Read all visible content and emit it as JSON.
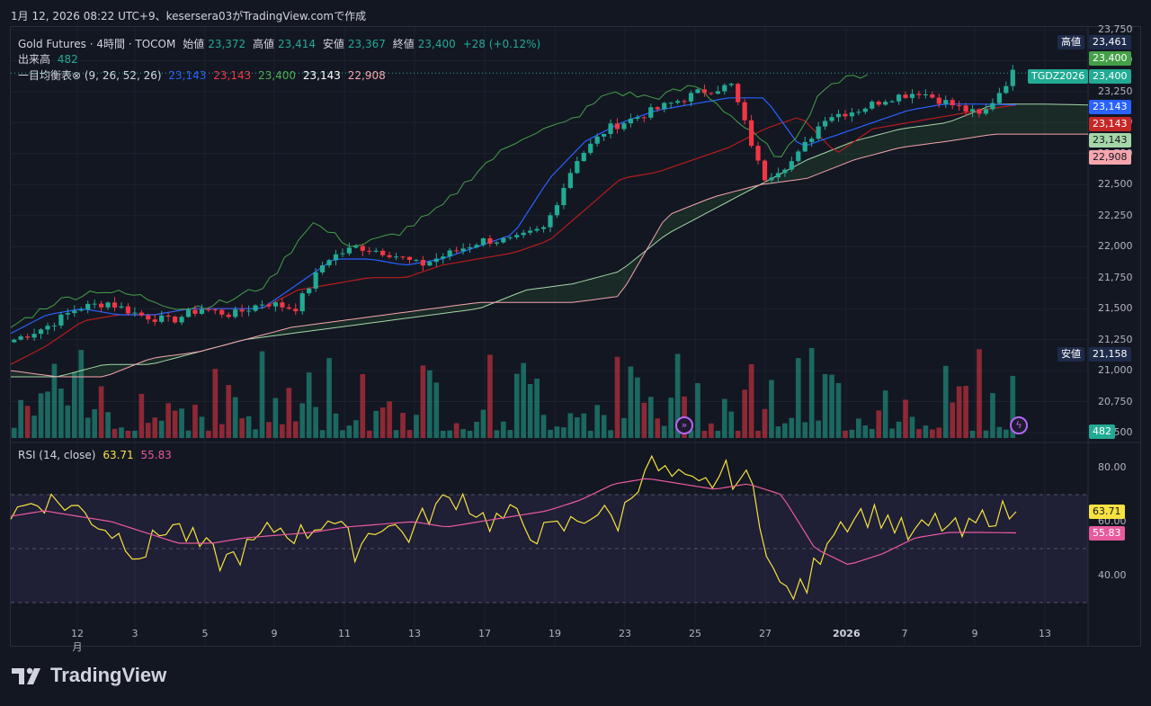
{
  "caption": "1月 12, 2026 08:22 UTC+9、kesersera03がTradingView.comで作成",
  "legend": {
    "symbol": "Gold Futures · 4時間 · TOCOM",
    "open_label": "始値",
    "open": "23,372",
    "high_label": "高値",
    "high": "23,414",
    "low_label": "安値",
    "low": "23,367",
    "close_label": "終値",
    "close": "23,400",
    "change": "+28 (+0.12%)",
    "volume_label": "出来高",
    "volume": "482",
    "ichimoku_label": "一目均衡表⊗ (9, 26, 52, 26)",
    "ichi_tenkan": "23,143",
    "ichi_kijun": "23,143",
    "ichi_chikou": "23,400",
    "ichi_spanA": "23,143",
    "ichi_spanB": "22,908",
    "rsi_label": "RSI (14, close)",
    "rsi_value": "63.71",
    "rsi_ma": "55.83"
  },
  "price_tags": {
    "high_label": "高値",
    "high_value": "23,461",
    "chikou": "23,400",
    "symbol_tag": "TGDZ2026",
    "last": "23,400",
    "tenkan": "23,143",
    "kijun": "23,143",
    "spanA": "23,143",
    "spanB": "22,908",
    "low_label": "安値",
    "low_value": "21,158",
    "volume": "482",
    "rsi": "63.71",
    "rsi_ma": "55.83"
  },
  "colors": {
    "background": "#131722",
    "up": "#22ab94",
    "down": "#f23645",
    "tenkan": "#2962ff",
    "kijun": "#b71c1c",
    "chikou": "#43a047",
    "spanA": "#a5d6a7",
    "spanB": "#f7a5ad",
    "rsi": "#f7e240",
    "rsi_ma": "#e85a9e"
  },
  "brand": "TradingView",
  "chart_data": {
    "type": "candlestick",
    "price_axis": [
      "23,750",
      "23,500",
      "23,250",
      "23,000",
      "22,750",
      "22,500",
      "22,250",
      "22,000",
      "21,750",
      "21,500",
      "21,250",
      "21,000",
      "20,750",
      "20,500"
    ],
    "rsi_axis": [
      "80.00",
      "60.00",
      "40.00"
    ],
    "rsi_bands": [
      70,
      50,
      30
    ],
    "x_ticks": [
      "12月",
      "3",
      "5",
      "9",
      "11",
      "13",
      "17",
      "19",
      "23",
      "25",
      "27",
      "2026",
      "7",
      "9",
      "13"
    ],
    "close_anchors": [
      21250,
      21350,
      21500,
      21550,
      21450,
      21400,
      21500,
      21450,
      21550,
      21500,
      21900,
      22000,
      21950,
      21850,
      21950,
      22050,
      22050,
      22150,
      22700,
      22950,
      23050,
      23150,
      23250,
      23300,
      22550,
      22700,
      23050,
      23100,
      23200,
      23250,
      23150,
      23050,
      23400
    ],
    "tenkan_anchors": [
      21300,
      21450,
      21500,
      21450,
      21450,
      21500,
      21500,
      21500,
      21700,
      21900,
      21900,
      21850,
      21900,
      22000,
      22100,
      22550,
      22850,
      23000,
      23100,
      23150,
      23200,
      23200,
      22800,
      22900,
      23000,
      23100,
      23150,
      23150,
      23143
    ],
    "kijun_anchors": [
      21050,
      21200,
      21400,
      21450,
      21450,
      21500,
      21500,
      21500,
      21650,
      21700,
      21750,
      21750,
      21850,
      21900,
      21950,
      22050,
      22300,
      22550,
      22600,
      22700,
      22800,
      22950,
      23050,
      22750,
      22950,
      23000,
      23050,
      23100,
      23143
    ],
    "chikou_anchors": [
      21350,
      21550,
      21650,
      21600,
      21500,
      21550,
      21700,
      22200,
      22000,
      22100,
      22300,
      22650,
      22900,
      23000,
      23250,
      23200,
      23300,
      23000,
      22700,
      23300,
      23400
    ],
    "spanA_anchors": [
      20950,
      20950,
      21050,
      21050,
      21150,
      21250,
      21300,
      21350,
      21400,
      21450,
      21500,
      21650,
      21700,
      21800,
      22100,
      22300,
      22500,
      22700,
      22850,
      22950,
      23000,
      23150,
      23150,
      23143
    ],
    "spanB_anchors": [
      21000,
      20950,
      20950,
      21100,
      21150,
      21250,
      21350,
      21400,
      21450,
      21500,
      21550,
      21550,
      21550,
      21600,
      22250,
      22400,
      22500,
      22550,
      22700,
      22800,
      22850,
      22908,
      22908,
      22908
    ],
    "rsi_anchors": [
      63,
      68,
      67,
      62,
      55,
      48,
      60,
      52,
      45,
      50,
      58,
      55,
      62,
      50,
      60,
      55,
      65,
      70,
      60,
      62,
      55,
      58,
      64,
      60,
      82,
      76,
      72,
      78,
      74,
      35,
      34,
      58,
      63,
      62,
      54,
      60,
      55,
      63,
      63.71
    ],
    "rsi_ma_anchors": [
      62,
      64,
      62,
      60,
      56,
      52,
      52,
      54,
      55,
      56,
      58,
      59,
      60,
      58,
      60,
      62,
      64,
      68,
      74,
      76,
      74,
      72,
      74,
      70,
      50,
      44,
      48,
      54,
      56,
      56,
      55.83
    ]
  }
}
